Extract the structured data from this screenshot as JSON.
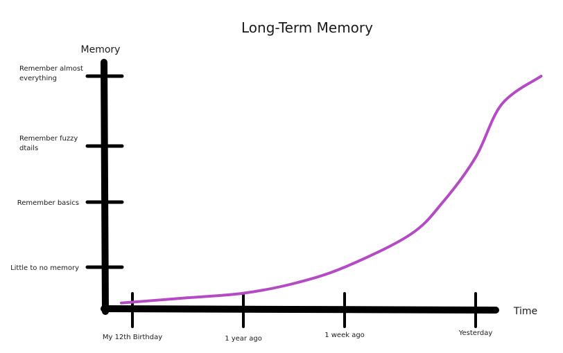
{
  "chart_data": {
    "type": "line",
    "title": "Long-Term Memory",
    "xlabel": "Time",
    "ylabel": "Memory",
    "x_categories": [
      "My 12th Birthday",
      "1 year ago",
      "1 week ago",
      "Yesterday"
    ],
    "y_categories": [
      "Little to no memory",
      "Remember basics",
      "Remember fuzzy\ndtails",
      "Remember almost\neverything"
    ],
    "grid": false,
    "legend": "none",
    "series": [
      {
        "color": "#b44bc4",
        "x": [
          -0.1,
          0.5,
          1.0,
          1.5,
          2.0,
          2.5,
          2.75,
          3.0,
          3.2,
          3.5
        ],
        "y": [
          -0.55,
          -0.47,
          -0.4,
          -0.25,
          0.0,
          0.5,
          1.0,
          1.8,
          2.6,
          3.0
        ]
      }
    ]
  }
}
